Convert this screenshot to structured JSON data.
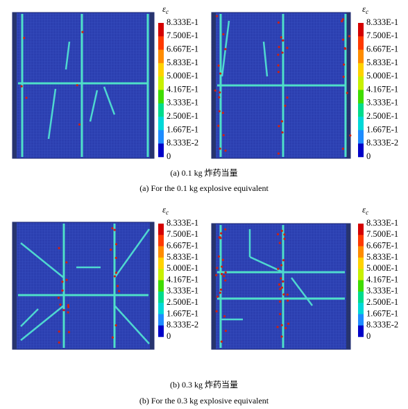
{
  "colorbar": {
    "symbol": "ε",
    "subscript": "c",
    "labels": [
      "8.333E-1",
      "7.500E-1",
      "6.667E-1",
      "5.833E-1",
      "5.000E-1",
      "4.167E-1",
      "3.333E-1",
      "2.500E-1",
      "1.667E-1",
      "8.333E-2",
      "0"
    ]
  },
  "panels": [
    {
      "caption_cn": "(a) 0.1 kg 炸药当量",
      "caption_en": "(a) For the 0.1 kg explosive equivalent"
    },
    {
      "caption_cn": "(b) 0.3 kg 炸药当量",
      "caption_en": "(b) For the 0.3 kg explosive equivalent"
    }
  ]
}
